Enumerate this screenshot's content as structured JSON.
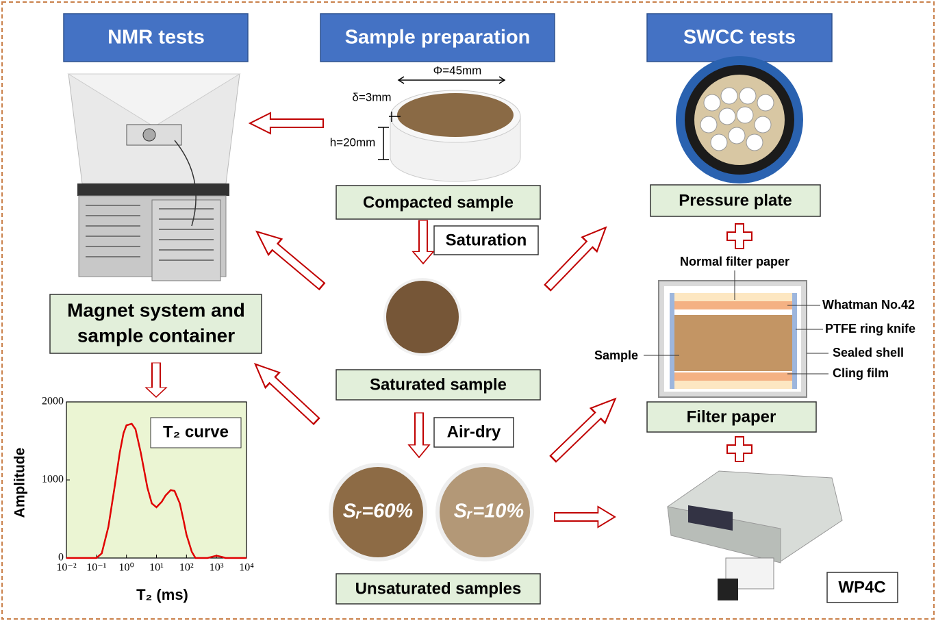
{
  "titles": {
    "nmr": "NMR tests",
    "preparation": "Sample preparation",
    "swcc": "SWCC tests"
  },
  "labels": {
    "compacted": "Compacted sample",
    "saturation": "Saturation",
    "saturated": "Saturated sample",
    "air_dry": "Air-dry",
    "unsaturated": "Unsaturated samples",
    "magnet": [
      "Magnet system and",
      "sample container"
    ],
    "pressure_plate": "Pressure plate",
    "filter_paper": "Filter paper",
    "wp4c": "WP4C"
  },
  "dimensions": {
    "diameter": "Φ=45mm",
    "thickness": "δ=3mm",
    "height": "h=20mm"
  },
  "samples": [
    "Sᵣ=60%",
    "Sᵣ=10%"
  ],
  "filter_layers": {
    "normal": "Normal filter paper",
    "whatman": "Whatman No.42",
    "ptfe": "PTFE ring knife",
    "shell": "Sealed shell",
    "film": "Cling film",
    "sample": "Sample"
  },
  "chart_data": {
    "type": "line",
    "annotation": "T₂ curve",
    "x_label": "T₂ (ms)",
    "y_label": "Amplitude",
    "xscale": "log",
    "color": "#e00000",
    "x": [
      0.01,
      0.05,
      0.1,
      0.15,
      0.25,
      0.4,
      0.6,
      0.8,
      1,
      1.5,
      2,
      3,
      5,
      7,
      10,
      15,
      20,
      30,
      40,
      60,
      80,
      100,
      150,
      200,
      300,
      500,
      800,
      1000,
      1500,
      2000,
      5000,
      10000
    ],
    "values": [
      0,
      0,
      0,
      60,
      400,
      900,
      1350,
      1600,
      1700,
      1720,
      1650,
      1350,
      900,
      700,
      650,
      720,
      800,
      870,
      860,
      700,
      480,
      300,
      80,
      0,
      0,
      0,
      20,
      30,
      15,
      0,
      0,
      0
    ],
    "xlim": [
      0.01,
      10000
    ],
    "ylim": [
      0,
      2000
    ],
    "xticks": [
      {
        "value": 0.01,
        "label": "10⁻²"
      },
      {
        "value": 0.1,
        "label": "10⁻¹"
      },
      {
        "value": 1,
        "label": "10⁰"
      },
      {
        "value": 10,
        "label": "10¹"
      },
      {
        "value": 100,
        "label": "10²"
      },
      {
        "value": 1000,
        "label": "10³"
      },
      {
        "value": 10000,
        "label": "10⁴"
      }
    ],
    "yticks": [
      0,
      1000,
      2000
    ]
  }
}
